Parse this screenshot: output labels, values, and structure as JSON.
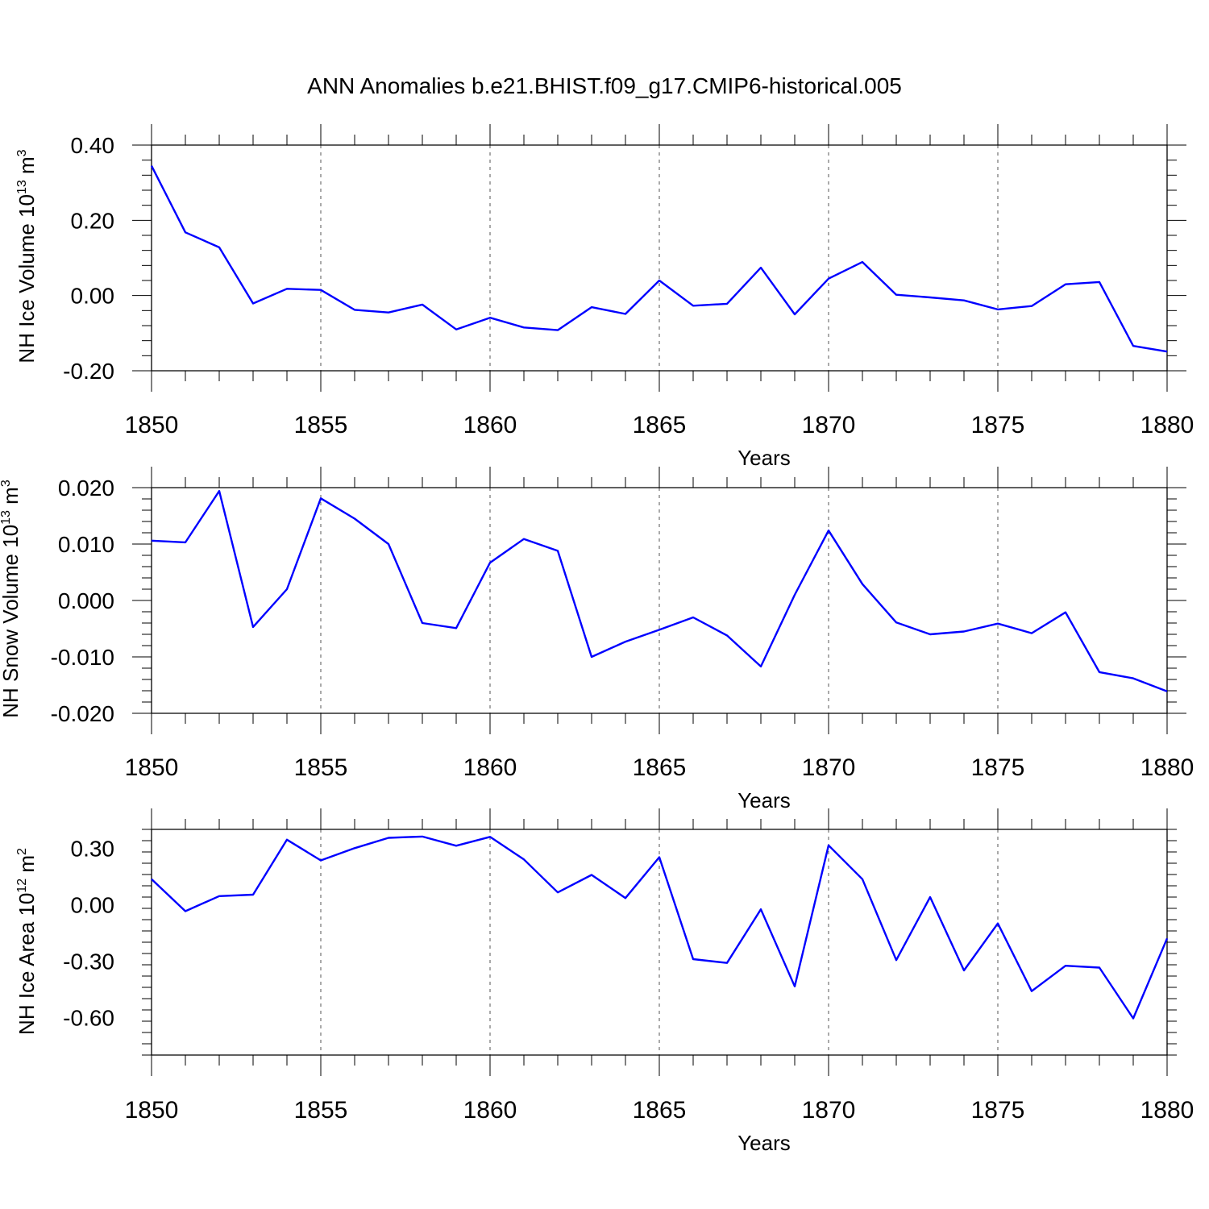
{
  "title": "ANN Anomalies b.e21.BHIST.f09_g17.CMIP6-historical.005",
  "colors": {
    "line": "#0000ff",
    "axis": "#000000",
    "grid": "#555555"
  },
  "chart_data": [
    {
      "type": "line",
      "ylabel_main": "NH Ice Volume 10",
      "ylabel_exp": "13",
      "ylabel_unit": "m",
      "ylabel_unit_exp": "3",
      "xlabel": "Years",
      "xlim": [
        1850,
        1880
      ],
      "ylim": [
        -0.2,
        0.4
      ],
      "yticks": [
        -0.2,
        0.0,
        0.2,
        0.4
      ],
      "ytick_labels": [
        "-0.20",
        "0.00",
        "0.20",
        "0.40"
      ],
      "xticks": [
        1850,
        1855,
        1860,
        1865,
        1870,
        1875,
        1880
      ],
      "xtick_labels": [
        "1850",
        "1855",
        "1860",
        "1865",
        "1870",
        "1875",
        "1880"
      ],
      "grid": "vertical dashed at labeled years",
      "x": [
        1850,
        1851,
        1852,
        1853,
        1854,
        1855,
        1856,
        1857,
        1858,
        1859,
        1860,
        1861,
        1862,
        1863,
        1864,
        1865,
        1866,
        1867,
        1868,
        1869,
        1870,
        1871,
        1872,
        1873,
        1874,
        1875,
        1876,
        1877,
        1878,
        1879,
        1880
      ],
      "values": [
        0.345,
        0.168,
        0.128,
        -0.021,
        0.018,
        0.015,
        -0.038,
        -0.045,
        -0.024,
        -0.09,
        -0.059,
        -0.085,
        -0.092,
        -0.031,
        -0.049,
        0.04,
        -0.027,
        -0.022,
        0.074,
        -0.05,
        0.045,
        0.089,
        0.002,
        -0.005,
        -0.013,
        -0.037,
        -0.028,
        0.03,
        0.036,
        -0.134,
        -0.149
      ]
    },
    {
      "type": "line",
      "ylabel_main": "NH Snow Volume 10",
      "ylabel_exp": "13",
      "ylabel_unit": "m",
      "ylabel_unit_exp": "3",
      "xlabel": "Years",
      "xlim": [
        1850,
        1880
      ],
      "ylim": [
        -0.02,
        0.02
      ],
      "yticks": [
        -0.02,
        -0.01,
        0.0,
        0.01,
        0.02
      ],
      "ytick_labels": [
        "-0.020",
        "-0.010",
        "0.000",
        "0.010",
        "0.020"
      ],
      "xticks": [
        1850,
        1855,
        1860,
        1865,
        1870,
        1875,
        1880
      ],
      "xtick_labels": [
        "1850",
        "1855",
        "1860",
        "1865",
        "1870",
        "1875",
        "1880"
      ],
      "grid": "vertical dashed at labeled years",
      "x": [
        1850,
        1851,
        1852,
        1853,
        1854,
        1855,
        1856,
        1857,
        1858,
        1859,
        1860,
        1861,
        1862,
        1863,
        1864,
        1865,
        1866,
        1867,
        1868,
        1869,
        1870,
        1871,
        1872,
        1873,
        1874,
        1875,
        1876,
        1877,
        1878,
        1879,
        1880
      ],
      "values": [
        0.0106,
        0.0103,
        0.0194,
        -0.0047,
        0.002,
        0.0181,
        0.0145,
        0.01,
        -0.004,
        -0.0049,
        0.0067,
        0.0109,
        0.0088,
        -0.01,
        -0.0073,
        -0.0052,
        -0.003,
        -0.0062,
        -0.0117,
        0.001,
        0.0124,
        0.0029,
        -0.0039,
        -0.006,
        -0.0055,
        -0.0041,
        -0.0058,
        -0.0021,
        -0.0127,
        -0.0138,
        -0.0161
      ]
    },
    {
      "type": "line",
      "ylabel_main": "NH Ice Area 10",
      "ylabel_exp": "12",
      "ylabel_unit": "m",
      "ylabel_unit_exp": "2",
      "xlabel": "Years",
      "xlim": [
        1850,
        1880
      ],
      "ylim": [
        -0.8,
        0.4
      ],
      "yticks": [
        -0.6,
        -0.3,
        0.0,
        0.3
      ],
      "ytick_labels": [
        "-0.60",
        "-0.30",
        "0.00",
        "0.30"
      ],
      "xticks": [
        1850,
        1855,
        1860,
        1865,
        1870,
        1875,
        1880
      ],
      "xtick_labels": [
        "1850",
        "1855",
        "1860",
        "1865",
        "1870",
        "1875",
        "1880"
      ],
      "grid": "vertical dashed at labeled years",
      "x": [
        1850,
        1851,
        1852,
        1853,
        1854,
        1855,
        1856,
        1857,
        1858,
        1859,
        1860,
        1861,
        1862,
        1863,
        1864,
        1865,
        1866,
        1867,
        1868,
        1869,
        1870,
        1871,
        1872,
        1873,
        1874,
        1875,
        1876,
        1877,
        1878,
        1879,
        1880
      ],
      "values": [
        0.135,
        -0.035,
        0.045,
        0.053,
        0.345,
        0.235,
        0.3,
        0.355,
        0.362,
        0.313,
        0.36,
        0.24,
        0.065,
        0.158,
        0.035,
        0.252,
        -0.29,
        -0.31,
        -0.025,
        -0.435,
        0.315,
        0.135,
        -0.295,
        0.04,
        -0.35,
        -0.1,
        -0.46,
        -0.325,
        -0.335,
        -0.605,
        -0.18
      ]
    }
  ]
}
